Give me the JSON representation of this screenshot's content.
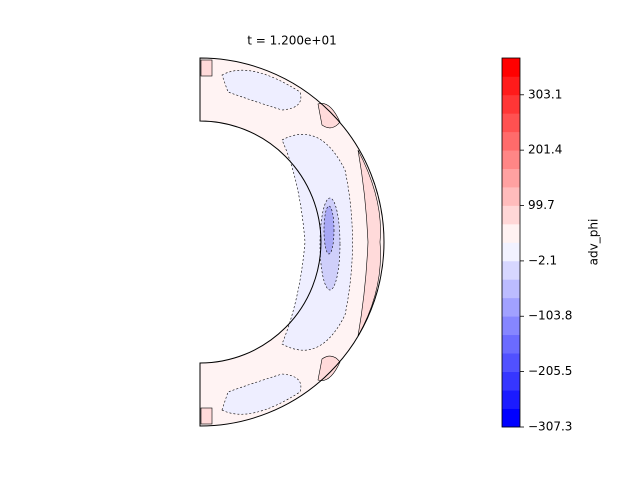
{
  "chart_data": {
    "type": "contour-colorbar",
    "title": "t = 1.200e+01",
    "colorbar_label": "adv_phi",
    "colormap": "bwr",
    "levels": 20,
    "ylim": [
      -307.3,
      370.7
    ],
    "yticks": [
      {
        "value": -307.3,
        "label": "−307.3"
      },
      {
        "value": -205.5,
        "label": "−205.5"
      },
      {
        "value": -103.8,
        "label": "−103.8"
      },
      {
        "value": -2.1,
        "label": "−2.1"
      },
      99.7,
      201.4,
      303.1
    ]
  }
}
